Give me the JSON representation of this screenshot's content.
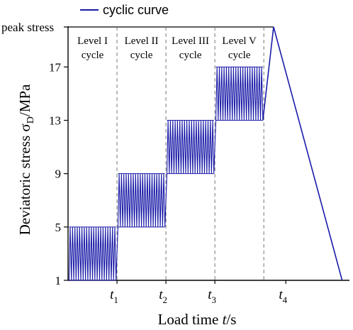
{
  "chart_data": {
    "type": "line",
    "legend": {
      "position": "top-left",
      "entries": [
        {
          "label": "cyclic curve",
          "color": "#1a1aa8"
        }
      ]
    },
    "xlabel": "Load time  t/s",
    "ylabel": "Deviatoric stress σD/MPa",
    "y_ticks": [
      {
        "label": "1",
        "value": 1
      },
      {
        "label": "5",
        "value": 5
      },
      {
        "label": "9",
        "value": 9
      },
      {
        "label": "13",
        "value": 13
      },
      {
        "label": "17",
        "value": 17
      }
    ],
    "peak_label": "peak stress",
    "peak_value": 20,
    "ylim": [
      1,
      20
    ],
    "x_ticks": [
      {
        "label": "t",
        "sub": "1",
        "value": 1
      },
      {
        "label": "t",
        "sub": "2",
        "value": 2
      },
      {
        "label": "t",
        "sub": "3",
        "value": 3
      },
      {
        "label": "t",
        "sub": "4",
        "value": 4.45
      }
    ],
    "xlim": [
      0,
      5.75
    ],
    "levels": [
      {
        "line1": "Level I",
        "line2": "cycle",
        "x_start": 0,
        "x_end": 1,
        "min": 1,
        "max": 5
      },
      {
        "line1": "Level II",
        "line2": "cycle",
        "x_start": 1,
        "x_end": 2,
        "min": 5,
        "max": 9
      },
      {
        "line1": "Level III",
        "line2": "cycle",
        "x_start": 2,
        "x_end": 3,
        "min": 9,
        "max": 13
      },
      {
        "line1": "Level V",
        "line2": "cycle",
        "x_start": 3,
        "x_end": 4,
        "min": 13,
        "max": 17
      }
    ],
    "cycles_per_level": 20,
    "ramp_to_peak": {
      "x_start": 4,
      "x_end": 4.2,
      "y_end": 20
    },
    "descent": {
      "x_start": 4.2,
      "x_end": 5.6,
      "y_end": 1
    },
    "line_color": "#1a1aa8"
  }
}
